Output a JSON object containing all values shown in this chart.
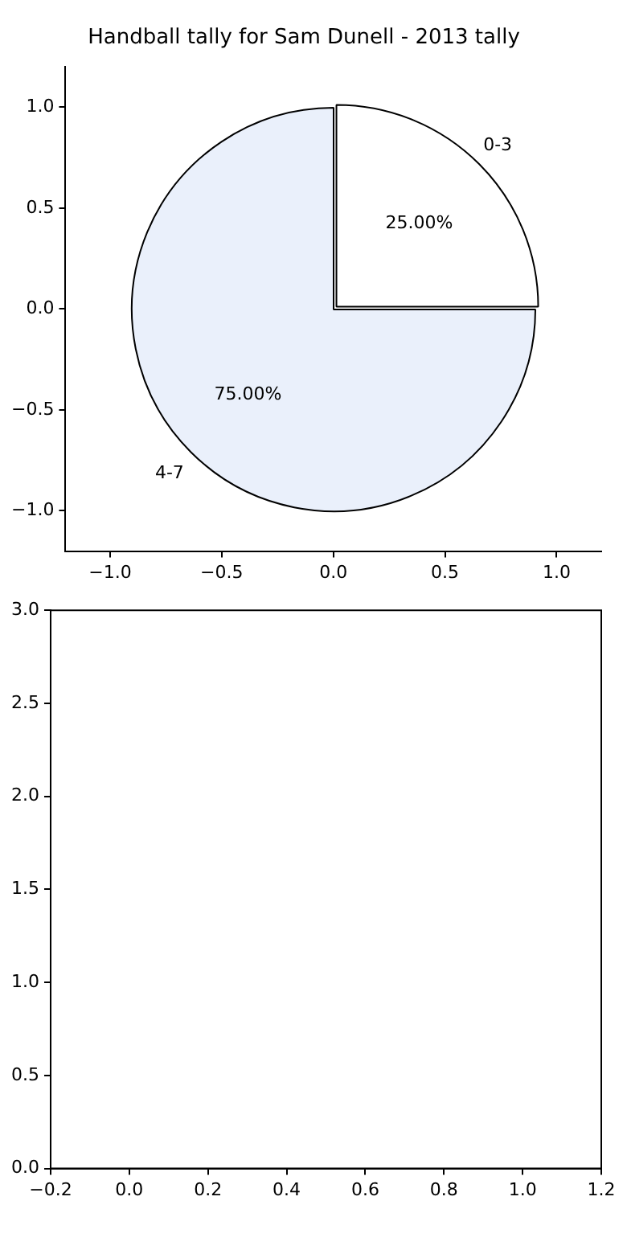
{
  "chart_data": [
    {
      "type": "scatter",
      "title": "Handball tally for Sam Dunell - 2013 tally",
      "xlim": [
        -1.2,
        1.2
      ],
      "xticks": [
        {
          "value": -1,
          "label": "−1.0"
        },
        {
          "value": -0.5,
          "label": "−0.5"
        },
        {
          "value": 0,
          "label": "0.0"
        },
        {
          "value": 0.5,
          "label": "0.5"
        },
        {
          "value": 1,
          "label": "1.0"
        }
      ],
      "ylim": [
        -1.2,
        1.2
      ],
      "yticks": [
        {
          "value": -1,
          "label": "−1.0"
        },
        {
          "value": -0.5,
          "label": "−0.5"
        },
        {
          "value": 0,
          "label": "0.0"
        },
        {
          "value": 0.5,
          "label": "0.5"
        },
        {
          "value": 1,
          "label": "1.0"
        }
      ]
    },
    {
      "type": "pie",
      "categories": [
        "0-3",
        "4-7"
      ],
      "values": [
        25,
        75
      ],
      "colors": [
        "#ffffff",
        "#eaf0fb"
      ],
      "value_labels": [
        "25.00%",
        "75.00%"
      ]
    },
    {
      "type": "scatter",
      "xlim": [
        -0.2,
        1.2
      ],
      "xticks": [
        {
          "value": -0.2,
          "label": "−0.2"
        },
        {
          "value": 0,
          "label": "0.0"
        },
        {
          "value": 0.2,
          "label": "0.2"
        },
        {
          "value": 0.4,
          "label": "0.4"
        },
        {
          "value": 0.6,
          "label": "0.6"
        },
        {
          "value": 0.8,
          "label": "0.8"
        },
        {
          "value": 1,
          "label": "1.0"
        },
        {
          "value": 1.2,
          "label": "1.2"
        }
      ],
      "ylim": [
        0,
        3
      ],
      "yticks": [
        {
          "value": 0,
          "label": "0.0"
        },
        {
          "value": 0.5,
          "label": "0.5"
        },
        {
          "value": 1,
          "label": "1.0"
        },
        {
          "value": 1.5,
          "label": "1.5"
        },
        {
          "value": 2,
          "label": "2.0"
        },
        {
          "value": 2.5,
          "label": "2.5"
        },
        {
          "value": 3,
          "label": "3.0"
        }
      ]
    }
  ]
}
